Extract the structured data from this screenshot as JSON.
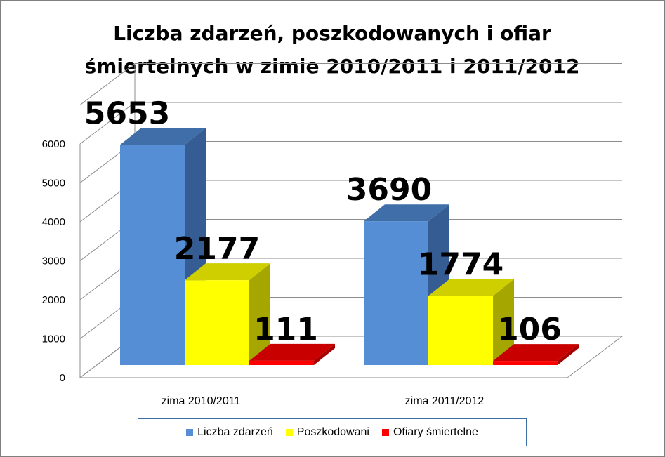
{
  "chart_data": {
    "type": "bar",
    "title": [
      "Liczba zdarzeń, poszkodowanych i ofiar",
      "śmiertelnych w zimie 2010/2011 i 2011/2012"
    ],
    "categories": [
      "zima 2010/2011",
      "zima 2011/2012"
    ],
    "series": [
      {
        "name": "Liczba zdarzeń",
        "values": [
          5653,
          3690
        ],
        "color": "#558ED5",
        "side": "#355D94",
        "top": "#3F6EA8"
      },
      {
        "name": "Poszkodowani",
        "values": [
          2177,
          1774
        ],
        "color": "#FFFF00",
        "side": "#A6A600",
        "top": "#CFCF00"
      },
      {
        "name": "Ofiary śmiertelne",
        "values": [
          111,
          106
        ],
        "color": "#FF0000",
        "side": "#A60000",
        "top": "#C80000"
      }
    ],
    "data_labels": [
      [
        "5653",
        "2177",
        "111"
      ],
      [
        "3690",
        "1774",
        "106"
      ]
    ],
    "yticks": [
      "0",
      "1000",
      "2000",
      "3000",
      "4000",
      "5000",
      "6000"
    ],
    "ylim": [
      0,
      7000
    ],
    "grid": true,
    "legend_position": "bottom"
  }
}
